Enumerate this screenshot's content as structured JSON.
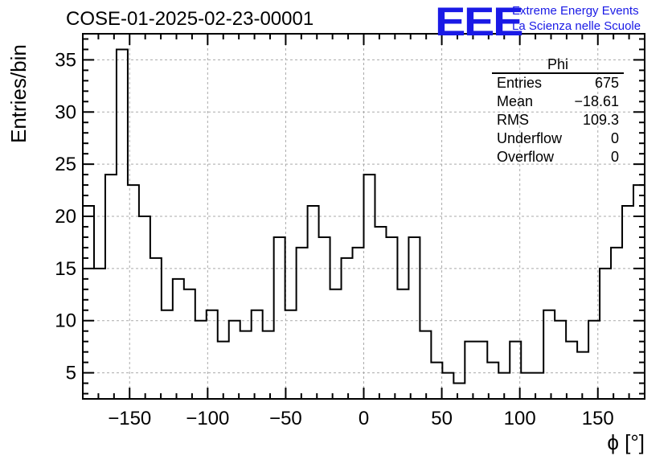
{
  "title": "COSE-01-2025-02-23-00001",
  "logo": {
    "mark": "EEE",
    "line1": "Extreme Energy Events",
    "line2": "La Scienza nelle Scuole",
    "color": "#1a1ae6"
  },
  "stats": {
    "name": "Phi",
    "rows": [
      {
        "label": "Entries",
        "value": "675"
      },
      {
        "label": "Mean",
        "value": "−18.61"
      },
      {
        "label": "RMS",
        "value": "109.3"
      },
      {
        "label": "Underflow",
        "value": "0"
      },
      {
        "label": "Overflow",
        "value": "0"
      }
    ]
  },
  "chart_data": {
    "type": "bar",
    "histogram": "step",
    "xlabel": "ϕ [°]",
    "ylabel": "Entries/bin",
    "xlim": [
      -180,
      180
    ],
    "ylim": [
      2.5,
      37.5
    ],
    "bin_width": 7.2,
    "x_ticks": [
      -150,
      -100,
      -50,
      0,
      50,
      100,
      150
    ],
    "x_tick_labels": [
      "−150",
      "−100",
      "−50",
      "0",
      "50",
      "100",
      "150"
    ],
    "y_ticks": [
      5,
      10,
      15,
      20,
      25,
      30,
      35
    ],
    "grid": true,
    "legend": "none",
    "values": [
      21,
      15,
      24,
      36,
      23,
      20,
      16,
      11,
      14,
      13,
      10,
      11,
      8,
      10,
      9,
      11,
      9,
      18,
      11,
      17,
      21,
      18,
      13,
      16,
      17,
      24,
      19,
      18,
      13,
      18,
      9,
      6,
      5,
      4,
      8,
      8,
      6,
      5,
      8,
      5,
      5,
      11,
      10,
      8,
      7,
      10,
      15,
      17,
      21,
      23
    ]
  }
}
